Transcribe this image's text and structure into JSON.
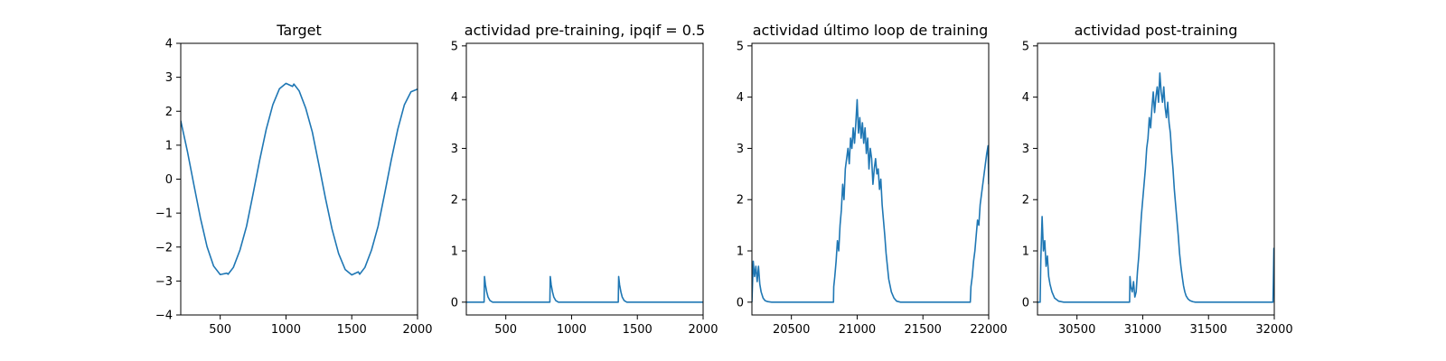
{
  "figure": {
    "background": "#ffffff",
    "line_color": "#1f77b4"
  },
  "chart_data": [
    {
      "type": "line",
      "title": "Target",
      "xlabel": "",
      "ylabel": "",
      "xlim": [
        200,
        2000
      ],
      "ylim": [
        -4,
        4
      ],
      "xticks": [
        500,
        1000,
        1500,
        2000
      ],
      "yticks": [
        -4,
        -3,
        -2,
        -1,
        0,
        1,
        2,
        3,
        4
      ],
      "xtick_labels": [
        "500",
        "1000",
        "1500",
        "2000"
      ],
      "ytick_labels": [
        "−4",
        "−3",
        "−2",
        "−1",
        "0",
        "1",
        "2",
        "3",
        "4"
      ],
      "grid": false,
      "series": [
        {
          "x": [
            200,
            250,
            300,
            350,
            400,
            450,
            500,
            550,
            560,
            600,
            650,
            700,
            750,
            800,
            850,
            900,
            950,
            1000,
            1050,
            1060,
            1100,
            1150,
            1200,
            1250,
            1300,
            1350,
            1400,
            1450,
            1500,
            1550,
            1560,
            1600,
            1650,
            1700,
            1750,
            1800,
            1850,
            1900,
            1950,
            2000
          ],
          "y": [
            1.72,
            0.83,
            -0.17,
            -1.15,
            -1.99,
            -2.56,
            -2.81,
            -2.77,
            -2.8,
            -2.6,
            -2.09,
            -1.39,
            -0.43,
            0.56,
            1.47,
            2.19,
            2.66,
            2.82,
            2.73,
            2.8,
            2.6,
            2.09,
            1.39,
            0.43,
            -0.56,
            -1.47,
            -2.19,
            -2.66,
            -2.82,
            -2.73,
            -2.8,
            -2.6,
            -2.09,
            -1.39,
            -0.43,
            0.56,
            1.47,
            2.19,
            2.57,
            2.65
          ]
        }
      ]
    },
    {
      "type": "line",
      "title": "actividad pre-training, ipqif = 0.5",
      "xlabel": "",
      "ylabel": "",
      "xlim": [
        200,
        2000
      ],
      "ylim": [
        -0.25,
        5.05
      ],
      "xticks": [
        500,
        1000,
        1500,
        2000
      ],
      "yticks": [
        0,
        1,
        2,
        3,
        4,
        5
      ],
      "xtick_labels": [
        "500",
        "1000",
        "1500",
        "2000"
      ],
      "ytick_labels": [
        "0",
        "1",
        "2",
        "3",
        "4",
        "5"
      ],
      "grid": false,
      "series": [
        {
          "x": [
            200,
            335,
            338,
            345,
            355,
            365,
            380,
            400,
            835,
            838,
            845,
            855,
            865,
            880,
            900,
            1355,
            1358,
            1365,
            1375,
            1385,
            1400,
            1420,
            2000
          ],
          "y": [
            0,
            0,
            0.5,
            0.34,
            0.2,
            0.1,
            0.03,
            0,
            0,
            0.5,
            0.34,
            0.2,
            0.1,
            0.03,
            0,
            0,
            0.5,
            0.34,
            0.2,
            0.1,
            0.03,
            0,
            0
          ]
        }
      ]
    },
    {
      "type": "line",
      "title": "actividad último loop de training",
      "xlabel": "",
      "ylabel": "",
      "xlim": [
        20200,
        22000
      ],
      "ylim": [
        -0.25,
        5.05
      ],
      "xticks": [
        20500,
        21000,
        21500,
        22000
      ],
      "yticks": [
        0,
        1,
        2,
        3,
        4,
        5
      ],
      "xtick_labels": [
        "20500",
        "21000",
        "21500",
        "22000"
      ],
      "ytick_labels": [
        "0",
        "1",
        "2",
        "3",
        "4",
        "5"
      ],
      "grid": false,
      "series": [
        {
          "x": [
            20200,
            20210,
            20220,
            20230,
            20240,
            20250,
            20260,
            20270,
            20285,
            20300,
            20320,
            20350,
            20820,
            20822,
            20830,
            20840,
            20850,
            20860,
            20870,
            20880,
            20890,
            20900,
            20910,
            20920,
            20930,
            20940,
            20950,
            20960,
            20970,
            20980,
            20990,
            21000,
            21010,
            21020,
            21030,
            21040,
            21050,
            21060,
            21070,
            21080,
            21090,
            21100,
            21110,
            21120,
            21130,
            21140,
            21150,
            21160,
            21170,
            21180,
            21190,
            21200,
            21210,
            21220,
            21230,
            21240,
            21260,
            21280,
            21300,
            21330,
            21860,
            21865,
            21875,
            21885,
            21895,
            21905,
            21915,
            21925,
            21935,
            21945,
            21955,
            21965,
            21975,
            21985,
            21995,
            22000
          ],
          "y": [
            0,
            0.8,
            0.5,
            0.7,
            0.4,
            0.7,
            0.35,
            0.2,
            0.08,
            0.03,
            0.01,
            0,
            0,
            0.3,
            0.5,
            0.8,
            1.2,
            1.0,
            1.5,
            1.8,
            2.3,
            2.0,
            2.6,
            2.8,
            3.0,
            2.7,
            3.2,
            3.0,
            3.4,
            3.1,
            3.5,
            3.95,
            3.3,
            3.6,
            3.2,
            3.5,
            3.1,
            3.4,
            2.9,
            3.2,
            2.6,
            3.0,
            2.8,
            2.3,
            2.6,
            2.8,
            2.5,
            2.6,
            2.2,
            2.4,
            1.9,
            1.6,
            1.3,
            0.95,
            0.7,
            0.45,
            0.2,
            0.08,
            0.02,
            0,
            0,
            0.3,
            0.5,
            0.8,
            1.0,
            1.3,
            1.6,
            1.5,
            1.9,
            2.1,
            2.3,
            2.5,
            2.7,
            2.9,
            3.05,
            2.3
          ]
        }
      ]
    },
    {
      "type": "line",
      "title": "actividad post-training",
      "xlabel": "",
      "ylabel": "",
      "xlim": [
        30200,
        32000
      ],
      "ylim": [
        -0.25,
        5.05
      ],
      "xticks": [
        30500,
        31000,
        31500,
        32000
      ],
      "yticks": [
        0,
        1,
        2,
        3,
        4,
        5
      ],
      "xtick_labels": [
        "30500",
        "31000",
        "31500",
        "32000"
      ],
      "ytick_labels": [
        "0",
        "1",
        "2",
        "3",
        "4",
        "5"
      ],
      "grid": false,
      "series": [
        {
          "x": [
            30200,
            30220,
            30225,
            30235,
            30245,
            30255,
            30265,
            30275,
            30285,
            30295,
            30310,
            30330,
            30360,
            30400,
            30900,
            30903,
            30910,
            30920,
            30930,
            30940,
            30950,
            30960,
            30970,
            30980,
            30990,
            31000,
            31010,
            31020,
            31030,
            31040,
            31050,
            31060,
            31070,
            31080,
            31090,
            31100,
            31110,
            31120,
            31130,
            31140,
            31150,
            31160,
            31170,
            31180,
            31190,
            31200,
            31210,
            31220,
            31230,
            31240,
            31250,
            31260,
            31270,
            31280,
            31290,
            31300,
            31310,
            31320,
            31330,
            31345,
            31360,
            31380,
            31400,
            31430,
            31990,
            31993,
            31997,
            32000
          ],
          "y": [
            0,
            0,
            0.8,
            1.67,
            1.0,
            1.2,
            0.7,
            0.9,
            0.5,
            0.35,
            0.2,
            0.08,
            0.02,
            0,
            0,
            0.5,
            0.3,
            0.2,
            0.4,
            0.1,
            0.2,
            0.6,
            0.9,
            1.3,
            1.7,
            2.0,
            2.3,
            2.6,
            3.0,
            3.2,
            3.6,
            3.4,
            3.8,
            4.1,
            3.7,
            4.0,
            4.2,
            3.9,
            4.47,
            4.1,
            3.9,
            4.2,
            3.8,
            3.6,
            3.9,
            3.5,
            3.3,
            2.9,
            2.6,
            2.2,
            1.9,
            1.6,
            1.3,
            0.95,
            0.7,
            0.5,
            0.32,
            0.2,
            0.12,
            0.06,
            0.03,
            0.01,
            0,
            0,
            0,
            0.4,
            1.05,
            0.6
          ]
        }
      ]
    }
  ]
}
